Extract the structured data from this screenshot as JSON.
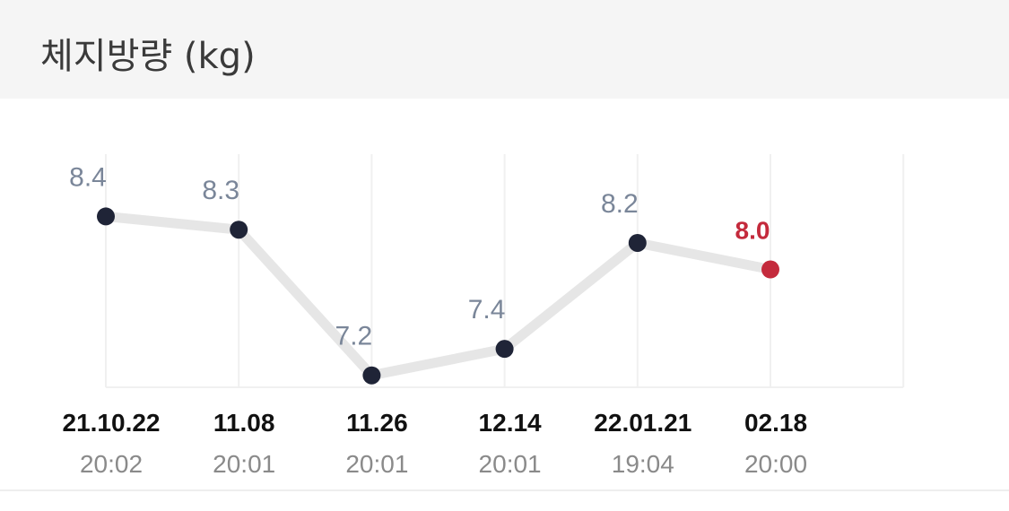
{
  "header": {
    "title": "체지방량 (kg)"
  },
  "chart_data": {
    "type": "line",
    "title": "체지방량 (kg)",
    "categories": [
      {
        "date": "21.10.22",
        "time": "20:02"
      },
      {
        "date": "11.08",
        "time": "20:01"
      },
      {
        "date": "11.26",
        "time": "20:01"
      },
      {
        "date": "12.14",
        "time": "20:01"
      },
      {
        "date": "22.01.21",
        "time": "19:04"
      },
      {
        "date": "02.18",
        "time": "20:00"
      }
    ],
    "values": [
      8.4,
      8.3,
      7.2,
      7.4,
      8.2,
      8.0
    ],
    "labels": [
      "8.4",
      "8.3",
      "7.2",
      "7.4",
      "8.2",
      "8.0"
    ],
    "highlight_index": 5,
    "ylim": [
      7.11,
      8.87
    ],
    "grid": "vertical",
    "colors": {
      "line": "#e6e6e6",
      "point": "#1f2437",
      "highlight": "#c42a3c",
      "value_label": "#7a8699",
      "date": "#111111",
      "time": "#8a8a8a",
      "grid": "#f0f0f0"
    }
  }
}
